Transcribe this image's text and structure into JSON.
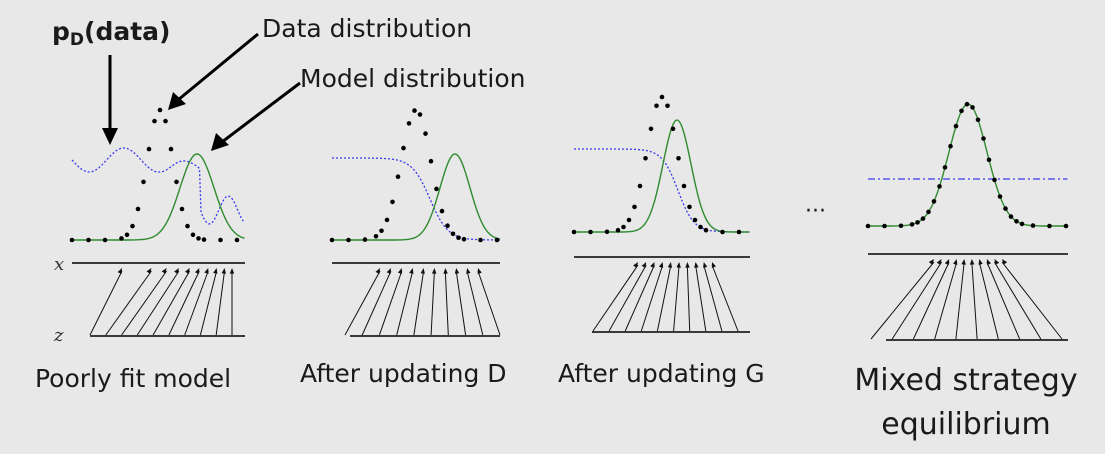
{
  "annotations": {
    "pd_label": "p",
    "pd_subscript": "D",
    "pd_arg": "(data)",
    "data_distribution": "Data distribution",
    "model_distribution": "Model distribution"
  },
  "axes": {
    "x_label": "x",
    "z_label": "z"
  },
  "ellipsis": "···",
  "panels": [
    {
      "caption": "Poorly fit model"
    },
    {
      "caption": "After updating D"
    },
    {
      "caption": "After updating G"
    },
    {
      "caption_line1": "Mixed strategy",
      "caption_line2": "equilibrium"
    }
  ],
  "colors": {
    "data_points": "#000000",
    "model_curve": "#2e8b2e",
    "discriminator_curve": "#3a3af0",
    "axis_lines": "#000000"
  }
}
